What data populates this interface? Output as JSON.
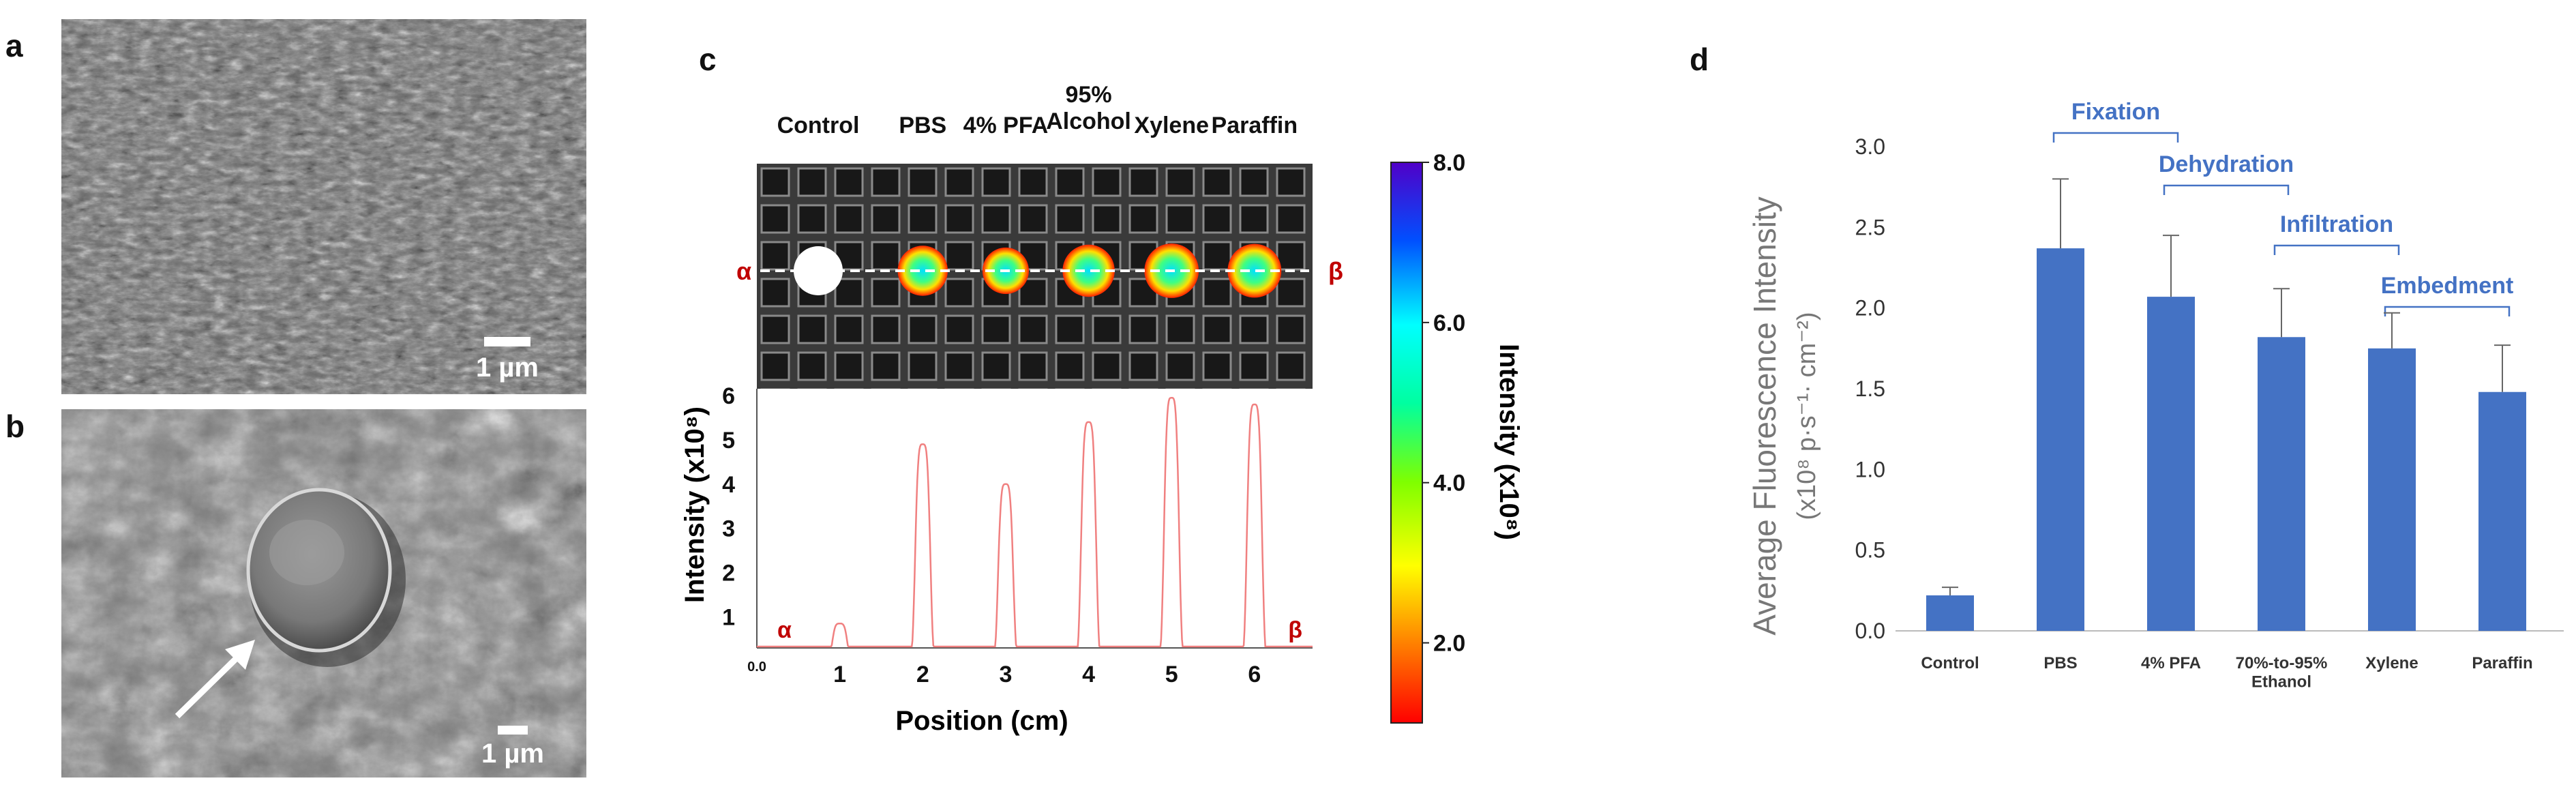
{
  "panels": {
    "a": {
      "label": "a",
      "scale_bar": "1 µm"
    },
    "b": {
      "label": "b",
      "scale_bar": "1 µm"
    },
    "c": {
      "label": "c"
    },
    "d": {
      "label": "d"
    }
  },
  "colors": {
    "bar": "#4472c4",
    "group_label": "#4472c4",
    "profile_line": "#f08080",
    "alpha_beta": "#c00000",
    "tray": "#2c2c2c"
  },
  "chart_data": [
    {
      "type": "line",
      "id": "panel-c",
      "title": "",
      "sample_labels": [
        "Control",
        "PBS",
        "4% PFA",
        "95%\nAlcohol",
        "Xylene",
        "Paraffin"
      ],
      "profile_start": "α",
      "profile_end": "β",
      "colorbar": {
        "label": "Intensity (x10⁸)",
        "ticks": [
          2.0,
          4.0,
          6.0,
          8.0
        ],
        "tick_labels": [
          "2.0",
          "4.0",
          "6.0",
          "8.0"
        ],
        "range": [
          1.0,
          8.0
        ]
      },
      "xlabel": "Position (cm)",
      "ylabel": "Intensity (x10⁸)",
      "xlim": [
        0.0,
        6.7
      ],
      "ylim": [
        0.3,
        6.0
      ],
      "x_ticks": [
        0,
        1,
        2,
        3,
        4,
        5,
        6
      ],
      "x_tick_labels": [
        "0.0",
        "1",
        "2",
        "3",
        "4",
        "5",
        "6"
      ],
      "y_ticks": [
        1,
        2,
        3,
        4,
        5,
        6
      ],
      "y_tick_labels": [
        "1",
        "2",
        "3",
        "4",
        "5",
        "6"
      ],
      "peaks": [
        {
          "x": 1.0,
          "height": 0.85,
          "width": 0.1
        },
        {
          "x": 2.0,
          "height": 4.9,
          "width": 0.1
        },
        {
          "x": 3.0,
          "height": 4.0,
          "width": 0.1
        },
        {
          "x": 4.0,
          "height": 5.4,
          "width": 0.1
        },
        {
          "x": 5.0,
          "height": 5.95,
          "width": 0.1
        },
        {
          "x": 6.0,
          "height": 5.8,
          "width": 0.1
        }
      ]
    },
    {
      "type": "bar",
      "id": "panel-d",
      "categories": [
        "Control",
        "PBS",
        "4% PFA",
        "70%-to-95%\nEthanol",
        "Xylene",
        "Paraffin"
      ],
      "values": [
        0.22,
        2.37,
        2.07,
        1.82,
        1.75,
        1.48
      ],
      "error": [
        0.05,
        0.43,
        0.38,
        0.3,
        0.22,
        0.29
      ],
      "ylabel": "Average Fluorescence Intensity",
      "ylabel_units": "(x10⁸ p·s⁻¹· cm⁻²)",
      "ylim": [
        0,
        3.0
      ],
      "y_ticks": [
        0,
        0.5,
        1.0,
        1.5,
        2.0,
        2.5,
        3.0
      ],
      "y_tick_labels": [
        "0.0",
        "0.5",
        "1.0",
        "1.5",
        "2.0",
        "2.5",
        "3.0"
      ],
      "groups": [
        {
          "label": "Fixation",
          "from": 1,
          "to": 2
        },
        {
          "label": "Dehydration",
          "from": 2,
          "to": 3
        },
        {
          "label": "Infiltration",
          "from": 3,
          "to": 4
        },
        {
          "label": "Embedment",
          "from": 4,
          "to": 5
        }
      ]
    }
  ]
}
